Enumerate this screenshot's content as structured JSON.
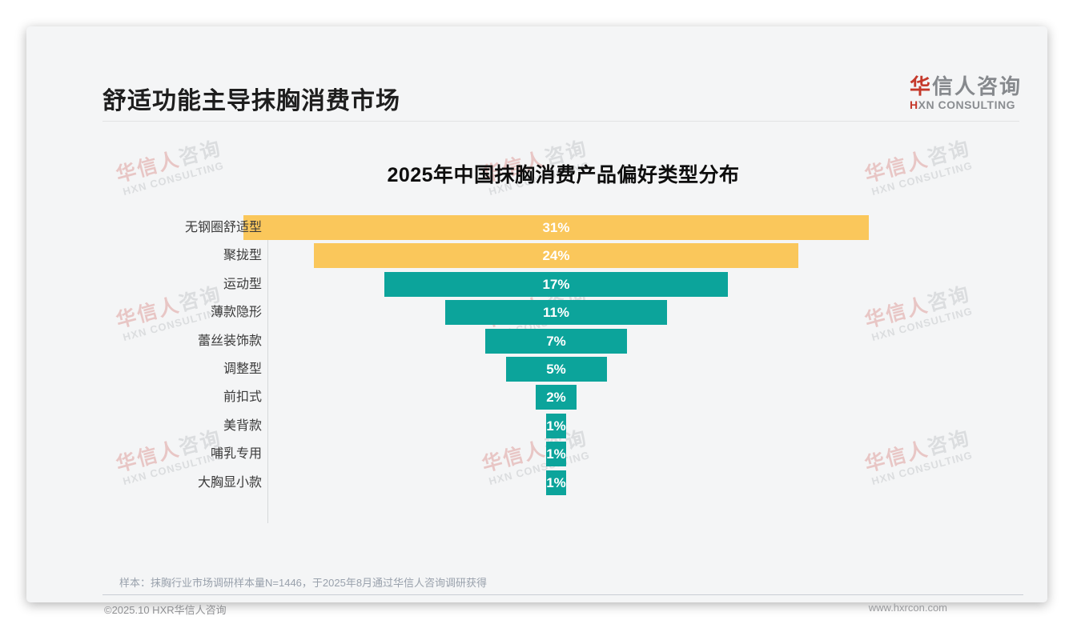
{
  "page": {
    "header": {
      "title": "舒适功能主导抹胸消费市场"
    },
    "logo": {
      "cn_first": "华",
      "cn_rest": "信人咨询",
      "en_first": "H",
      "en_rest": "XN CONSULTING"
    },
    "watermark": {
      "cn_red": "华信人",
      "cn_gray": "咨询",
      "en": "HXN CONSULTING"
    },
    "note": "样本：抹胸行业市场调研样本量N=1446，于2025年8月通过华信人咨询调研获得",
    "footer": {
      "left": "©2025.10 HXR华信人咨询",
      "right": "www.hxrcon.com"
    }
  },
  "chart_data": {
    "type": "bar",
    "orientation": "horizontal-centered-funnel",
    "title": "2025年中国抹胸消费产品偏好类型分布",
    "categories": [
      "无钢圈舒适型",
      "聚拢型",
      "运动型",
      "薄款隐形",
      "蕾丝装饰款",
      "调整型",
      "前扣式",
      "美背款",
      "哺乳专用",
      "大胸显小款"
    ],
    "values": [
      31,
      24,
      17,
      11,
      7,
      5,
      2,
      1,
      1,
      1
    ],
    "unit": "%",
    "label_format": "{value}%",
    "bar_colors": [
      "#FAC75B",
      "#FAC75B",
      "#0CA49B",
      "#0CA49B",
      "#0CA49B",
      "#0CA49B",
      "#0CA49B",
      "#0CA49B",
      "#0CA49B",
      "#0CA49B"
    ],
    "value_label_color": "#ffffff",
    "xlim": [
      0,
      31
    ],
    "grid": false,
    "legend": false
  }
}
